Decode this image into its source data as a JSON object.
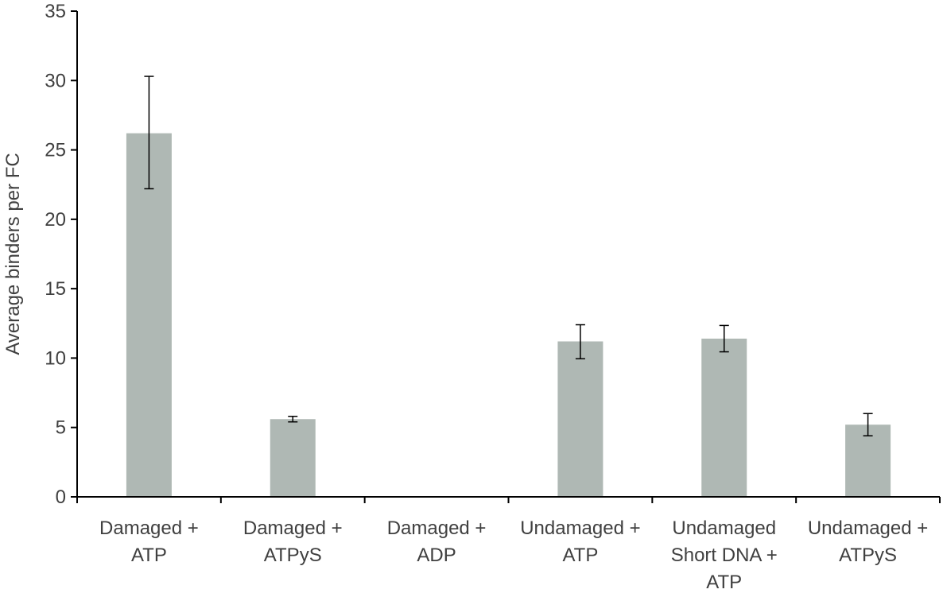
{
  "chart_data": {
    "type": "bar",
    "title": "",
    "xlabel": "",
    "ylabel": "Average binders per FC",
    "ylim": [
      0,
      35
    ],
    "yticks": [
      0,
      5,
      10,
      15,
      20,
      25,
      30,
      35
    ],
    "grid": false,
    "categories": [
      [
        "Damaged +",
        "ATP"
      ],
      [
        "Damaged +",
        "ATPyS"
      ],
      [
        "Damaged +",
        "ADP"
      ],
      [
        "Undamaged +",
        "ATP"
      ],
      [
        "Undamaged",
        "Short DNA +",
        "ATP"
      ],
      [
        "Undamaged +",
        "ATPyS"
      ]
    ],
    "values": [
      26.2,
      5.6,
      0,
      11.2,
      11.4,
      5.2
    ],
    "error": [
      [
        22.2,
        30.3
      ],
      [
        5.4,
        5.8
      ],
      null,
      [
        9.95,
        12.4
      ],
      [
        10.45,
        12.35
      ],
      [
        4.4,
        6.0
      ]
    ],
    "colors": {
      "bar": "#afb8b4",
      "axis": "#000000",
      "error_bar": "#000000",
      "text": "#404040"
    }
  }
}
